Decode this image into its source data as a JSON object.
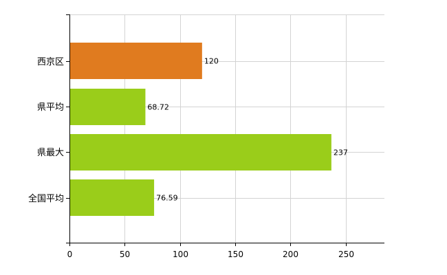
{
  "chart_data": {
    "type": "bar",
    "orientation": "horizontal",
    "categories": [
      "西京区",
      "県平均",
      "県最大",
      "全国平均"
    ],
    "values": [
      120,
      68.72,
      237,
      76.59
    ],
    "value_labels": [
      "120",
      "68.72",
      "237",
      "76.59"
    ],
    "bar_colors": [
      "#e07b1f",
      "#9acd1a",
      "#9acd1a",
      "#9acd1a"
    ],
    "xlim": [
      0,
      285
    ],
    "xticks": [
      0,
      50,
      100,
      150,
      200,
      250
    ],
    "grid": true,
    "title": "",
    "xlabel": "",
    "ylabel": ""
  }
}
